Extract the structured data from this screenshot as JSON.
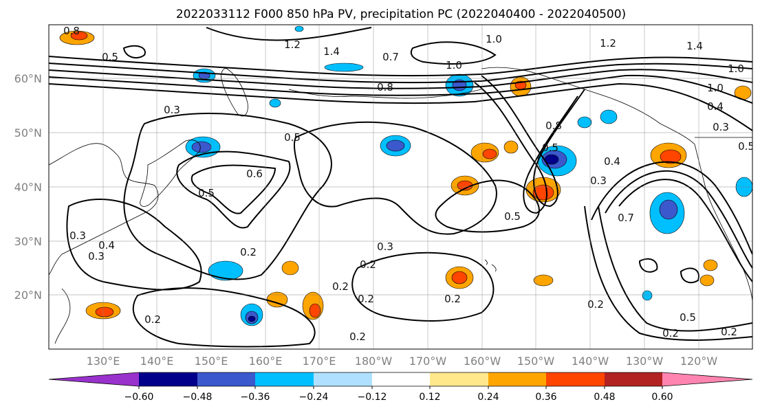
{
  "title": "2022033112 F000 850 hPa PV, precipitation PC (2022040400 - 2022040500)",
  "lat_labels": [
    "60°N",
    "50°N",
    "40°N",
    "30°N",
    "20°N"
  ],
  "lon_labels": [
    "130°E",
    "140°E",
    "150°E",
    "160°E",
    "170°E",
    "180°W",
    "170°W",
    "160°W",
    "150°W",
    "140°W",
    "130°W",
    "120°W"
  ],
  "colorbar": {
    "tick_labels": [
      "−0.60",
      "−0.48",
      "−0.36",
      "−0.24",
      "−0.12",
      "0.12",
      "0.24",
      "0.36",
      "0.48",
      "0.60"
    ],
    "colors": [
      "#9932cc",
      "#00008b",
      "#3b58cc",
      "#00bfff",
      "#b0e0ff",
      "#ffffff",
      "#ffe88c",
      "#ffa500",
      "#ff4500",
      "#b22222",
      "#ff85b0"
    ]
  },
  "contour_labels": [
    "0.5",
    "0.5",
    "0.6",
    "0.5",
    "0.5",
    "0.3",
    "0.4",
    "0.3",
    "0.2",
    "0.3",
    "0.2",
    "0.2",
    "0.2",
    "0.2",
    "0.8",
    "0.7",
    "1.0",
    "1.0",
    "1.4",
    "1.2",
    "0.8",
    "1.0",
    "1.2",
    "1.4",
    "1.0",
    "0.5",
    "0.8",
    "0.4",
    "0.3",
    "0.4",
    "0.3",
    "0.7",
    "0.5",
    "0.2",
    "0.2",
    "0.5",
    "0.2",
    "0.2",
    "0.2",
    "0.3"
  ]
}
